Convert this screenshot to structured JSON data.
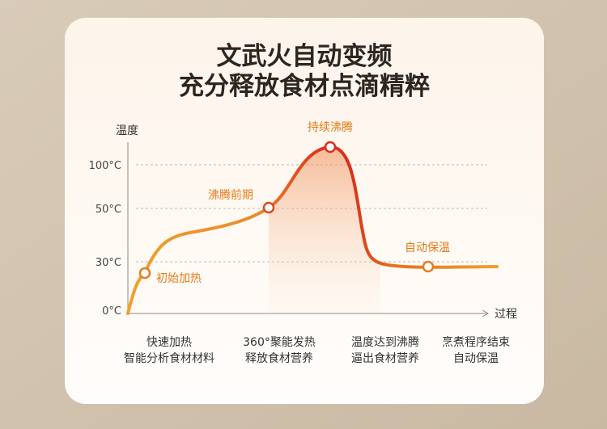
{
  "title": [
    "文武火自动变频",
    "充分释放食材点滴精粹"
  ],
  "y_axis": {
    "label": "温度",
    "ticks": [
      "100°C",
      "50°C",
      "30°C",
      "0°C"
    ]
  },
  "x_axis": {
    "label": "过程"
  },
  "points": [
    "初始加热",
    "沸腾前期",
    "持续沸腾",
    "自动保温"
  ],
  "stages": [
    [
      "快速加热",
      "智能分析食材材料"
    ],
    [
      "360°聚能发热",
      "释放食材营养"
    ],
    [
      "温度达到沸腾",
      "逼出食材营养"
    ],
    [
      "烹煮程序结束",
      "自动保温"
    ]
  ]
}
